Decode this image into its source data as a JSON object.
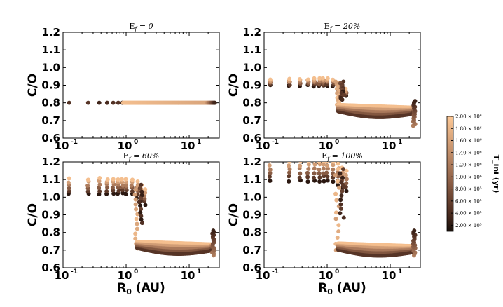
{
  "chart_data": {
    "type": "scatter",
    "layout": "2x2 panels with shared colorbar",
    "x_scale": "log",
    "xlim": [
      0.1,
      30
    ],
    "ylim": [
      0.6,
      1.2
    ],
    "xlabel": "R",
    "xlabel_sub": "0",
    "xlabel_unit": "(AU)",
    "ylabel": "C/O",
    "x_tick_labels": [
      {
        "base": "10",
        "exp": "-1"
      },
      {
        "base": "10",
        "exp": "0"
      },
      {
        "base": "10",
        "exp": "1"
      }
    ],
    "y_ticks": [
      0.6,
      0.7,
      0.8,
      0.9,
      1.0,
      1.1,
      1.2
    ],
    "y_tick_labels": [
      "0.6",
      "0.7",
      "0.8",
      "0.9",
      "1.0",
      "1.1",
      "1.2"
    ],
    "colorbar": {
      "title": "T_ini (yr)",
      "min": 100000,
      "max": 2000000,
      "colormap": "copper",
      "tick_labels": [
        "2.00 × 10⁶",
        "1.80 × 10⁶",
        "1.60 × 10⁶",
        "1.40 × 10⁶",
        "1.20 × 10⁶",
        "1.00 × 10⁶",
        "8.00 × 10⁵",
        "6.00 × 10⁵",
        "4.00 × 10⁵",
        "2.00 × 10⁵"
      ],
      "tick_values": [
        2000000,
        1800000,
        1600000,
        1400000,
        1200000,
        1000000,
        800000,
        600000,
        400000,
        200000
      ]
    },
    "panels": [
      {
        "title_prefix": "E",
        "title_sub": "f",
        "title_rest": " = 0",
        "efficiency": 0
      },
      {
        "title_prefix": "E",
        "title_sub": "f",
        "title_rest": " = 20%",
        "efficiency": 0.2
      },
      {
        "title_prefix": "E",
        "title_sub": "f",
        "title_rest": " = 60%",
        "efficiency": 0.6
      },
      {
        "title_prefix": "E",
        "title_sub": "f",
        "title_rest": " = 100%",
        "efficiency": 1.0
      }
    ],
    "series_description": {
      "initial_formation_radii_au": [
        0.125,
        0.25,
        0.375,
        0.5,
        0.625,
        0.75,
        0.875,
        1.0,
        1.25,
        1.5,
        1.75,
        2.0
      ],
      "baseline_co": 0.8,
      "inner_enriched_co": {
        "E0": 0.8,
        "E20": 0.92,
        "E60": 1.07,
        "E100": 1.16
      },
      "outer_depleted_co": {
        "E0": 0.8,
        "E20": 0.75,
        "E60": 0.71,
        "E100": 0.7
      },
      "outer_edge_radius_au": 24,
      "outer_edge_co_range": [
        0.67,
        0.81
      ]
    }
  }
}
